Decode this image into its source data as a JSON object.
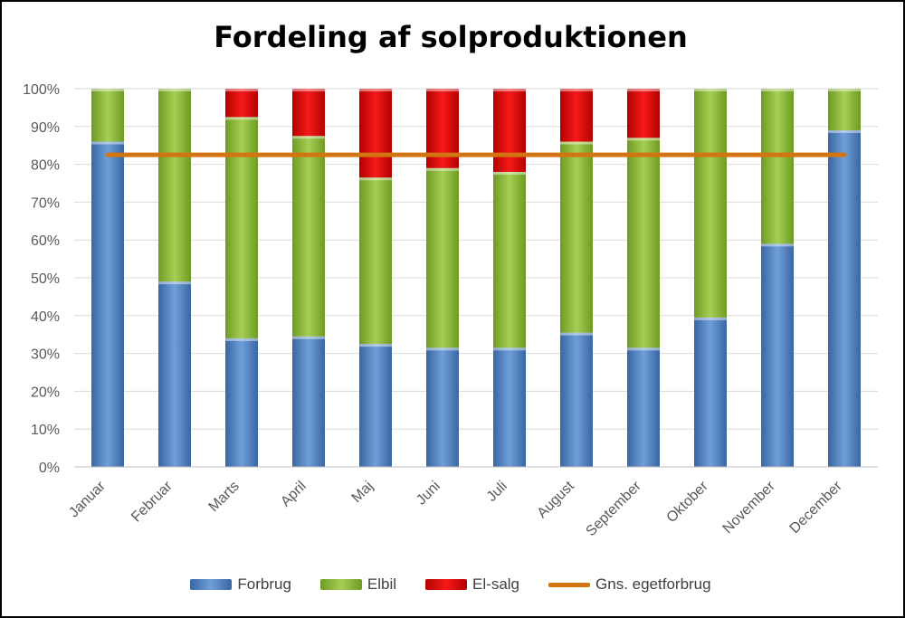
{
  "chart_data": {
    "type": "bar",
    "stacked": true,
    "title": "Fordeling af solproduktionen",
    "categories": [
      "Januar",
      "Februar",
      "Marts",
      "April",
      "Maj",
      "Juni",
      "Juli",
      "August",
      "September",
      "Oktober",
      "November",
      "December"
    ],
    "series": [
      {
        "name": "Forbrug",
        "color": "#4f81bd",
        "values": [
          86,
          49,
          34,
          34.5,
          32.5,
          31.5,
          31.5,
          35.5,
          31.5,
          39.5,
          59,
          89
        ]
      },
      {
        "name": "Elbil",
        "color": "#8bb43c",
        "values": [
          14,
          51,
          58.5,
          53,
          44,
          47.5,
          46.5,
          50.5,
          55.5,
          60.5,
          41,
          11
        ]
      },
      {
        "name": "El-salg",
        "color": "#e01010",
        "values": [
          0,
          0,
          7.5,
          12.5,
          23.5,
          21,
          22,
          14,
          13,
          0,
          0,
          0
        ]
      }
    ],
    "line": {
      "name": "Gns. egetforbrug",
      "color": "#d27510",
      "value": 82.5
    },
    "ylim": [
      0,
      100
    ],
    "yticks": [
      "0%",
      "10%",
      "20%",
      "30%",
      "40%",
      "50%",
      "60%",
      "70%",
      "80%",
      "90%",
      "100%"
    ],
    "xlabel": "",
    "ylabel": ""
  }
}
